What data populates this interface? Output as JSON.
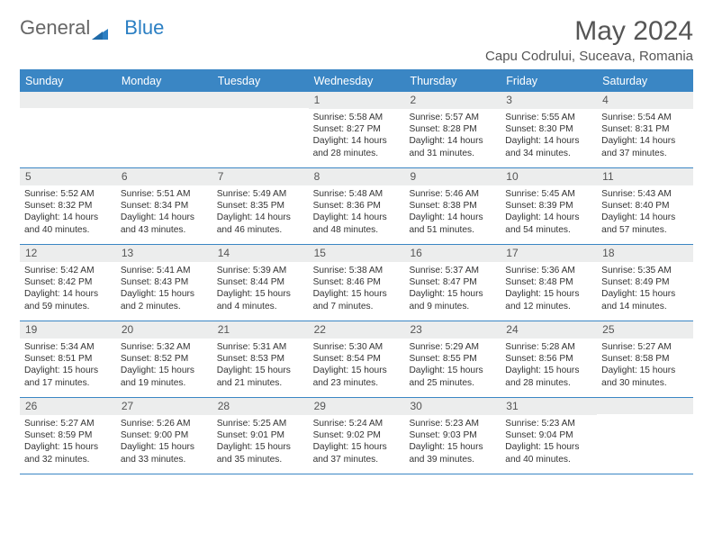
{
  "logo": {
    "text1": "General",
    "text2": "Blue"
  },
  "title": "May 2024",
  "location": "Capu Codrului, Suceava, Romania",
  "weekdays": [
    "Sunday",
    "Monday",
    "Tuesday",
    "Wednesday",
    "Thursday",
    "Friday",
    "Saturday"
  ],
  "colors": {
    "header_bg": "#3a86c4",
    "header_text": "#ffffff",
    "daynum_bg": "#eceded",
    "border": "#3a86c4",
    "title": "#555555",
    "body_text": "#333333",
    "logo_blue": "#2b7fc3"
  },
  "weeks": [
    [
      {
        "n": "",
        "sr": "",
        "ss": "",
        "dl": ""
      },
      {
        "n": "",
        "sr": "",
        "ss": "",
        "dl": ""
      },
      {
        "n": "",
        "sr": "",
        "ss": "",
        "dl": ""
      },
      {
        "n": "1",
        "sr": "Sunrise: 5:58 AM",
        "ss": "Sunset: 8:27 PM",
        "dl": "Daylight: 14 hours and 28 minutes."
      },
      {
        "n": "2",
        "sr": "Sunrise: 5:57 AM",
        "ss": "Sunset: 8:28 PM",
        "dl": "Daylight: 14 hours and 31 minutes."
      },
      {
        "n": "3",
        "sr": "Sunrise: 5:55 AM",
        "ss": "Sunset: 8:30 PM",
        "dl": "Daylight: 14 hours and 34 minutes."
      },
      {
        "n": "4",
        "sr": "Sunrise: 5:54 AM",
        "ss": "Sunset: 8:31 PM",
        "dl": "Daylight: 14 hours and 37 minutes."
      }
    ],
    [
      {
        "n": "5",
        "sr": "Sunrise: 5:52 AM",
        "ss": "Sunset: 8:32 PM",
        "dl": "Daylight: 14 hours and 40 minutes."
      },
      {
        "n": "6",
        "sr": "Sunrise: 5:51 AM",
        "ss": "Sunset: 8:34 PM",
        "dl": "Daylight: 14 hours and 43 minutes."
      },
      {
        "n": "7",
        "sr": "Sunrise: 5:49 AM",
        "ss": "Sunset: 8:35 PM",
        "dl": "Daylight: 14 hours and 46 minutes."
      },
      {
        "n": "8",
        "sr": "Sunrise: 5:48 AM",
        "ss": "Sunset: 8:36 PM",
        "dl": "Daylight: 14 hours and 48 minutes."
      },
      {
        "n": "9",
        "sr": "Sunrise: 5:46 AM",
        "ss": "Sunset: 8:38 PM",
        "dl": "Daylight: 14 hours and 51 minutes."
      },
      {
        "n": "10",
        "sr": "Sunrise: 5:45 AM",
        "ss": "Sunset: 8:39 PM",
        "dl": "Daylight: 14 hours and 54 minutes."
      },
      {
        "n": "11",
        "sr": "Sunrise: 5:43 AM",
        "ss": "Sunset: 8:40 PM",
        "dl": "Daylight: 14 hours and 57 minutes."
      }
    ],
    [
      {
        "n": "12",
        "sr": "Sunrise: 5:42 AM",
        "ss": "Sunset: 8:42 PM",
        "dl": "Daylight: 14 hours and 59 minutes."
      },
      {
        "n": "13",
        "sr": "Sunrise: 5:41 AM",
        "ss": "Sunset: 8:43 PM",
        "dl": "Daylight: 15 hours and 2 minutes."
      },
      {
        "n": "14",
        "sr": "Sunrise: 5:39 AM",
        "ss": "Sunset: 8:44 PM",
        "dl": "Daylight: 15 hours and 4 minutes."
      },
      {
        "n": "15",
        "sr": "Sunrise: 5:38 AM",
        "ss": "Sunset: 8:46 PM",
        "dl": "Daylight: 15 hours and 7 minutes."
      },
      {
        "n": "16",
        "sr": "Sunrise: 5:37 AM",
        "ss": "Sunset: 8:47 PM",
        "dl": "Daylight: 15 hours and 9 minutes."
      },
      {
        "n": "17",
        "sr": "Sunrise: 5:36 AM",
        "ss": "Sunset: 8:48 PM",
        "dl": "Daylight: 15 hours and 12 minutes."
      },
      {
        "n": "18",
        "sr": "Sunrise: 5:35 AM",
        "ss": "Sunset: 8:49 PM",
        "dl": "Daylight: 15 hours and 14 minutes."
      }
    ],
    [
      {
        "n": "19",
        "sr": "Sunrise: 5:34 AM",
        "ss": "Sunset: 8:51 PM",
        "dl": "Daylight: 15 hours and 17 minutes."
      },
      {
        "n": "20",
        "sr": "Sunrise: 5:32 AM",
        "ss": "Sunset: 8:52 PM",
        "dl": "Daylight: 15 hours and 19 minutes."
      },
      {
        "n": "21",
        "sr": "Sunrise: 5:31 AM",
        "ss": "Sunset: 8:53 PM",
        "dl": "Daylight: 15 hours and 21 minutes."
      },
      {
        "n": "22",
        "sr": "Sunrise: 5:30 AM",
        "ss": "Sunset: 8:54 PM",
        "dl": "Daylight: 15 hours and 23 minutes."
      },
      {
        "n": "23",
        "sr": "Sunrise: 5:29 AM",
        "ss": "Sunset: 8:55 PM",
        "dl": "Daylight: 15 hours and 25 minutes."
      },
      {
        "n": "24",
        "sr": "Sunrise: 5:28 AM",
        "ss": "Sunset: 8:56 PM",
        "dl": "Daylight: 15 hours and 28 minutes."
      },
      {
        "n": "25",
        "sr": "Sunrise: 5:27 AM",
        "ss": "Sunset: 8:58 PM",
        "dl": "Daylight: 15 hours and 30 minutes."
      }
    ],
    [
      {
        "n": "26",
        "sr": "Sunrise: 5:27 AM",
        "ss": "Sunset: 8:59 PM",
        "dl": "Daylight: 15 hours and 32 minutes."
      },
      {
        "n": "27",
        "sr": "Sunrise: 5:26 AM",
        "ss": "Sunset: 9:00 PM",
        "dl": "Daylight: 15 hours and 33 minutes."
      },
      {
        "n": "28",
        "sr": "Sunrise: 5:25 AM",
        "ss": "Sunset: 9:01 PM",
        "dl": "Daylight: 15 hours and 35 minutes."
      },
      {
        "n": "29",
        "sr": "Sunrise: 5:24 AM",
        "ss": "Sunset: 9:02 PM",
        "dl": "Daylight: 15 hours and 37 minutes."
      },
      {
        "n": "30",
        "sr": "Sunrise: 5:23 AM",
        "ss": "Sunset: 9:03 PM",
        "dl": "Daylight: 15 hours and 39 minutes."
      },
      {
        "n": "31",
        "sr": "Sunrise: 5:23 AM",
        "ss": "Sunset: 9:04 PM",
        "dl": "Daylight: 15 hours and 40 minutes."
      },
      {
        "n": "",
        "sr": "",
        "ss": "",
        "dl": ""
      }
    ]
  ]
}
